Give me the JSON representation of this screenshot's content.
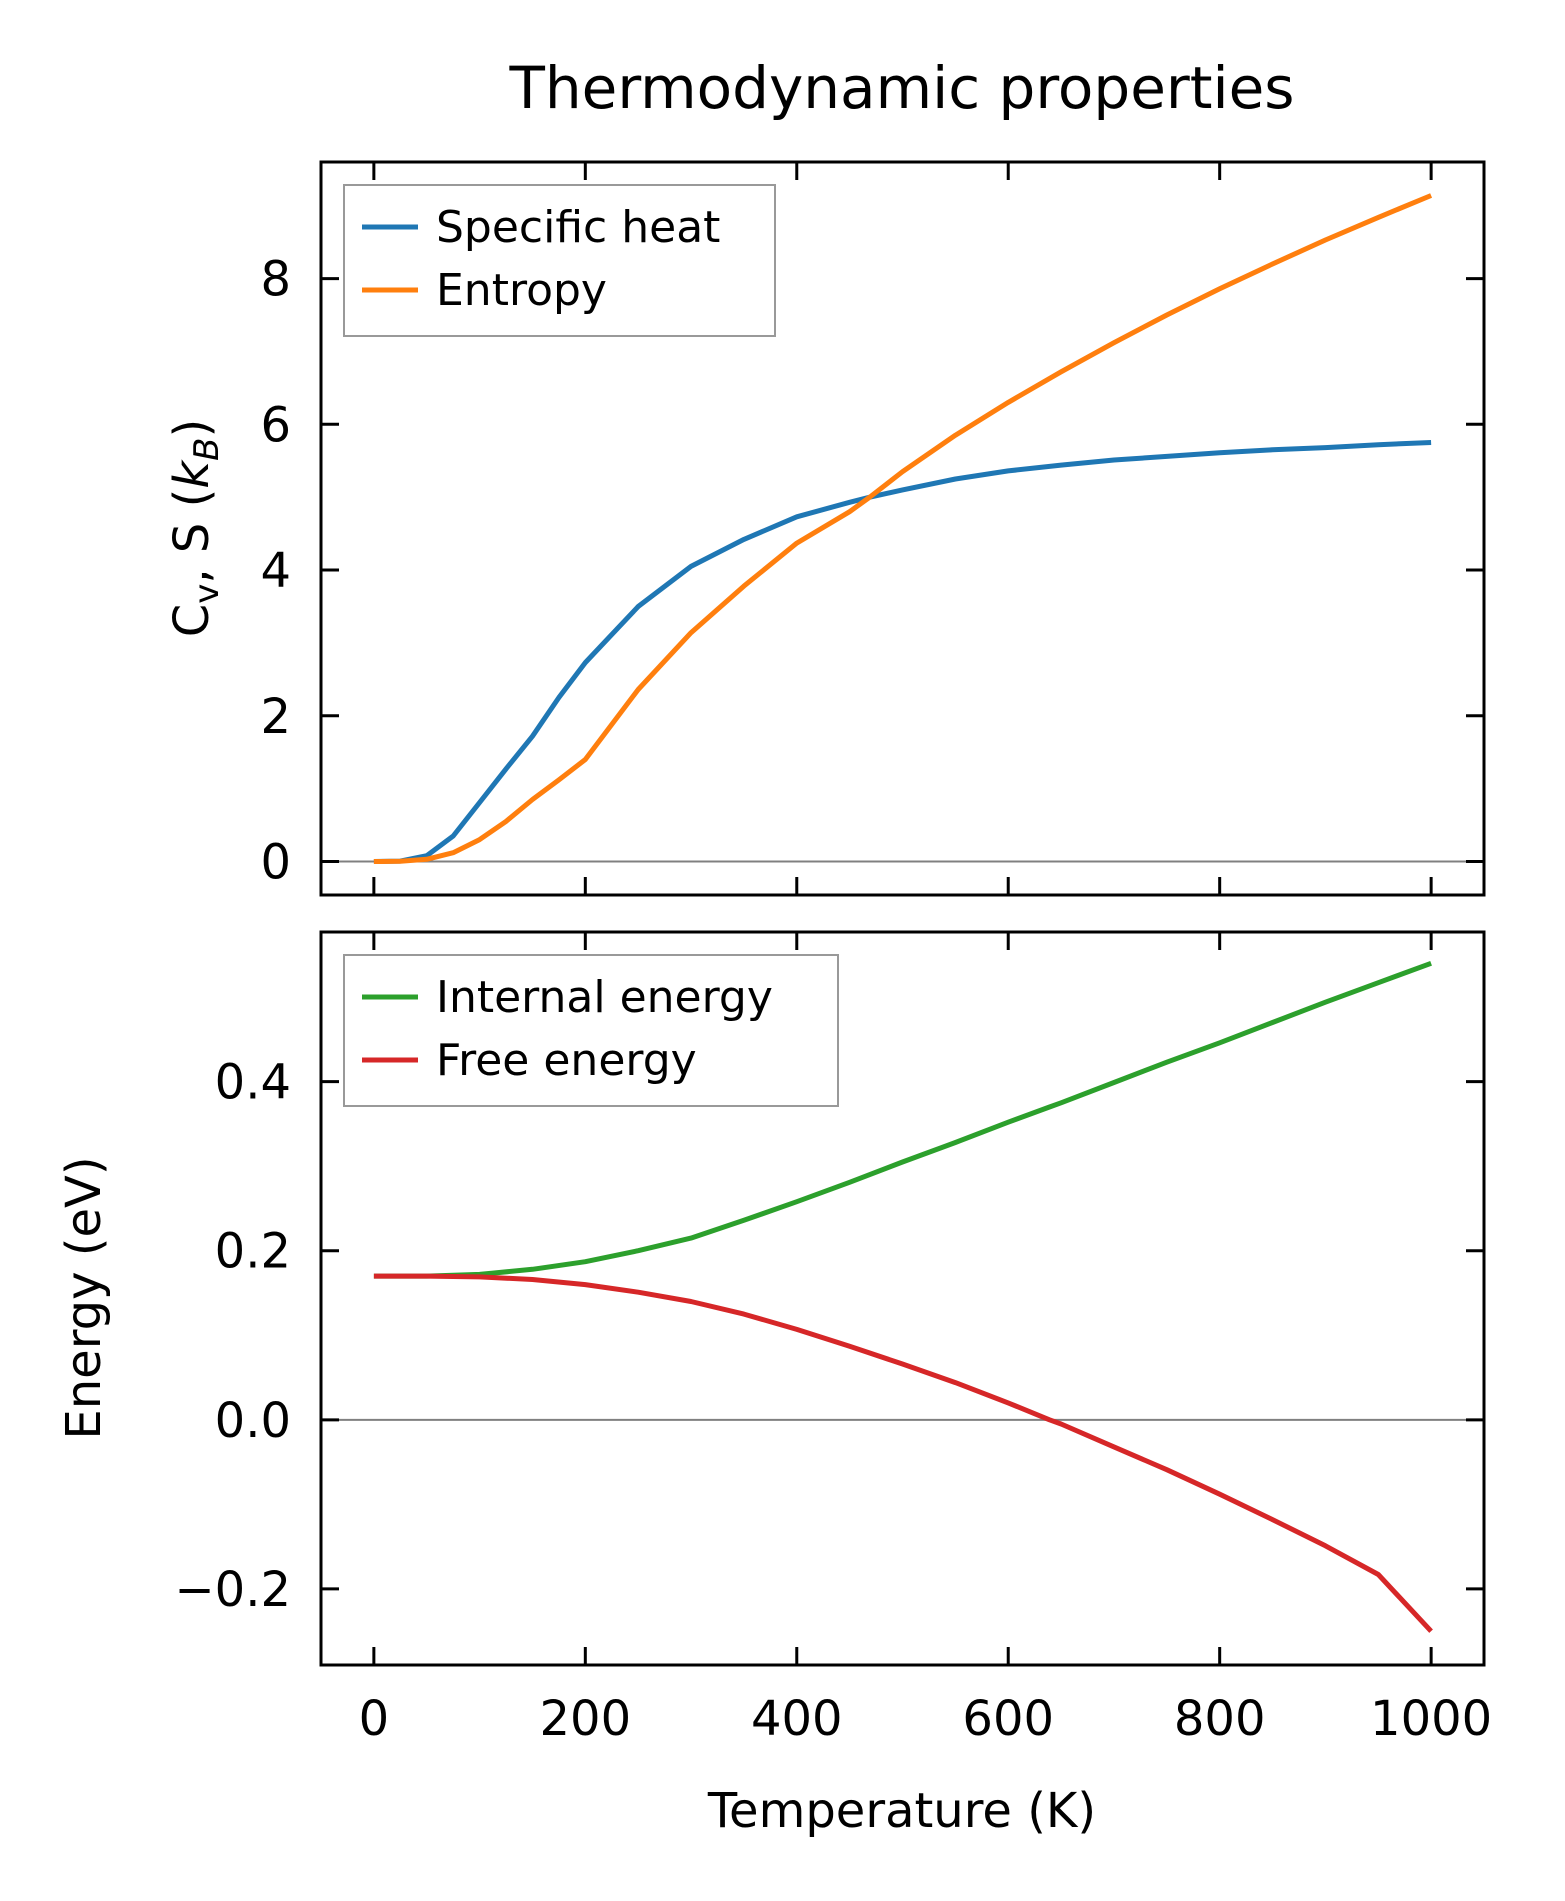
{
  "chart_data": {
    "title": "Thermodynamic properties",
    "xlabel": "Temperature (K)",
    "xlim": [
      -50,
      1050
    ],
    "xticks": [
      0,
      200,
      400,
      600,
      800,
      1000
    ],
    "xtick_labels": [
      "0",
      "200",
      "400",
      "600",
      "800",
      "1000"
    ],
    "panels": [
      {
        "type": "line",
        "ylabel": "C_v, S (k_B)",
        "ylabel_parts": {
          "C": "C",
          "sub": "v",
          "rest": ", S (",
          "k": "k",
          "ksub": "B",
          "close": ")"
        },
        "ylim": [
          -0.46,
          9.6
        ],
        "yticks": [
          0,
          2,
          4,
          6,
          8
        ],
        "ytick_labels": [
          "0",
          "2",
          "4",
          "6",
          "8"
        ],
        "zero_line": true,
        "legend": "top-left",
        "x": [
          0,
          25,
          50,
          75,
          100,
          125,
          150,
          175,
          200,
          250,
          300,
          350,
          400,
          450,
          469,
          500,
          550,
          600,
          650,
          700,
          750,
          800,
          850,
          900,
          950,
          1000
        ],
        "series": [
          {
            "name": "Specific heat",
            "color": "#1f77b4",
            "values": [
              0,
              0.005,
              0.08,
              0.35,
              0.81,
              1.27,
              1.72,
              2.25,
              2.73,
              3.5,
              4.05,
              4.42,
              4.73,
              4.93,
              5.0,
              5.1,
              5.25,
              5.36,
              5.44,
              5.51,
              5.56,
              5.61,
              5.65,
              5.68,
              5.72,
              5.75
            ]
          },
          {
            "name": "Entropy",
            "color": "#ff7f0e",
            "values": [
              0,
              0.002,
              0.03,
              0.12,
              0.3,
              0.55,
              0.85,
              1.12,
              1.4,
              2.36,
              3.14,
              3.78,
              4.37,
              4.8,
              5.0,
              5.35,
              5.85,
              6.3,
              6.72,
              7.12,
              7.5,
              7.86,
              8.2,
              8.53,
              8.84,
              9.14
            ]
          }
        ]
      },
      {
        "type": "line",
        "ylabel": "Energy (eV)",
        "ylim": [
          -0.29,
          0.577
        ],
        "yticks": [
          -0.2,
          0.0,
          0.2,
          0.4
        ],
        "ytick_labels": [
          "−0.2",
          "0.0",
          "0.2",
          "0.4"
        ],
        "zero_line": true,
        "legend": "top-left",
        "x": [
          0,
          50,
          100,
          150,
          200,
          250,
          300,
          350,
          400,
          450,
          500,
          550,
          600,
          639,
          650,
          700,
          750,
          800,
          850,
          900,
          950,
          1000
        ],
        "series": [
          {
            "name": "Internal energy",
            "color": "#2ca02c",
            "values": [
              0.17,
              0.17,
              0.172,
              0.178,
              0.187,
              0.2,
              0.215,
              0.236,
              0.258,
              0.281,
              0.305,
              0.328,
              0.352,
              0.37,
              0.375,
              0.399,
              0.423,
              0.446,
              0.47,
              0.494,
              0.517,
              0.54
            ]
          },
          {
            "name": "Free energy",
            "color": "#d62728",
            "values": [
              0.17,
              0.17,
              0.169,
              0.166,
              0.16,
              0.151,
              0.14,
              0.125,
              0.107,
              0.087,
              0.066,
              0.044,
              0.02,
              0.0,
              -0.005,
              -0.032,
              -0.059,
              -0.088,
              -0.118,
              -0.149,
              -0.183,
              -0.25
            ]
          }
        ]
      }
    ]
  }
}
